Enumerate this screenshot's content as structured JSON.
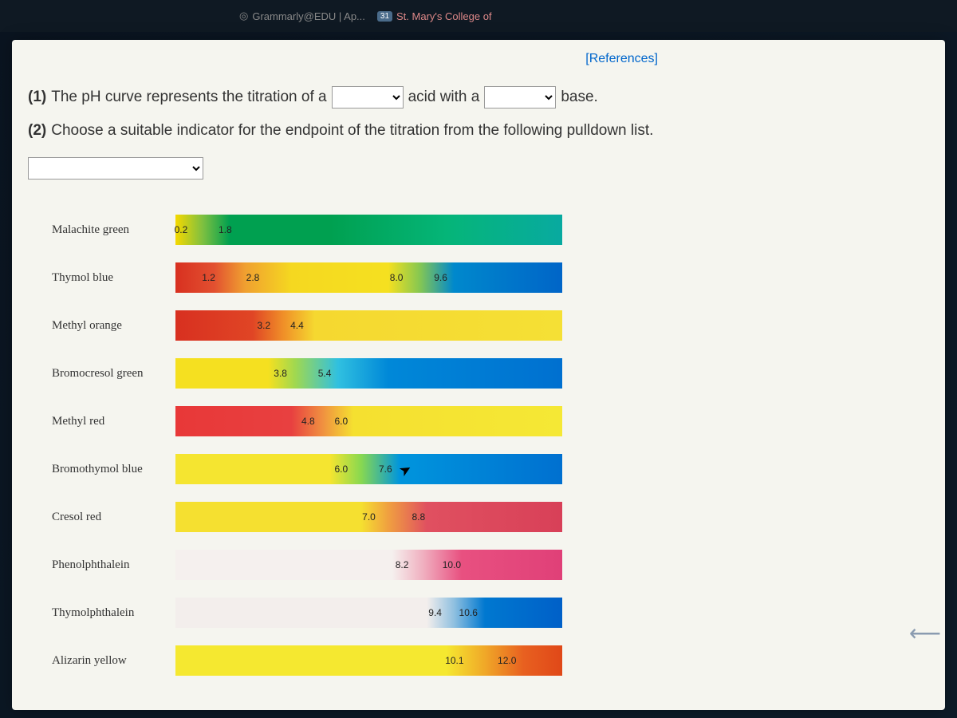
{
  "browser_tabs": {
    "grammarly": "Grammarly@EDU | Ap...",
    "badge": "31",
    "stmarys": "St. Mary's College of "
  },
  "references": "[References]",
  "question1": {
    "num": "(1)",
    "part_a": "The pH curve represents the titration of a",
    "part_b": "acid with a",
    "part_c": "base."
  },
  "question2": {
    "num": "(2)",
    "text": "Choose a suitable indicator for the endpoint of the titration from the following pulldown list."
  },
  "ph_range": {
    "min": 0,
    "max": 14
  },
  "indicators": [
    {
      "name": "Malachite green",
      "low": "0.2",
      "high": "1.8",
      "stops": [
        {
          "c": "#f5d800",
          "p": 0
        },
        {
          "c": "#7fc040",
          "p": 7
        },
        {
          "c": "#00a050",
          "p": 14
        },
        {
          "c": "#00a050",
          "p": 40
        },
        {
          "c": "#05b578",
          "p": 70
        },
        {
          "c": "#08aaa0",
          "p": 100
        }
      ]
    },
    {
      "name": "Thymol blue",
      "low": "1.2",
      "high": "2.8",
      "low2": "8.0",
      "high2": "9.6",
      "stops": [
        {
          "c": "#d83020",
          "p": 0
        },
        {
          "c": "#e25030",
          "p": 10
        },
        {
          "c": "#f0a030",
          "p": 18
        },
        {
          "c": "#f5d820",
          "p": 30
        },
        {
          "c": "#f5e020",
          "p": 55
        },
        {
          "c": "#88c850",
          "p": 63
        },
        {
          "c": "#0088cc",
          "p": 72
        },
        {
          "c": "#0065c8",
          "p": 100
        }
      ]
    },
    {
      "name": "Methyl orange",
      "low": "3.2",
      "high": "4.4",
      "stops": [
        {
          "c": "#d83020",
          "p": 0
        },
        {
          "c": "#e04525",
          "p": 20
        },
        {
          "c": "#f09028",
          "p": 28
        },
        {
          "c": "#f5d830",
          "p": 36
        },
        {
          "c": "#f5e035",
          "p": 100
        }
      ]
    },
    {
      "name": "Bromocresol green",
      "low": "3.8",
      "high": "5.4",
      "stops": [
        {
          "c": "#f5e020",
          "p": 0
        },
        {
          "c": "#f5e020",
          "p": 24
        },
        {
          "c": "#a0d850",
          "p": 31
        },
        {
          "c": "#30c0e0",
          "p": 42
        },
        {
          "c": "#0088d8",
          "p": 55
        },
        {
          "c": "#0070d0",
          "p": 100
        }
      ]
    },
    {
      "name": "Methyl red",
      "low": "4.8",
      "high": "6.0",
      "stops": [
        {
          "c": "#e83838",
          "p": 0
        },
        {
          "c": "#e84040",
          "p": 30
        },
        {
          "c": "#f09040",
          "p": 38
        },
        {
          "c": "#f5e030",
          "p": 46
        },
        {
          "c": "#f5e835",
          "p": 100
        }
      ]
    },
    {
      "name": "Bromothymol blue",
      "low": "6.0",
      "high": "7.6",
      "stops": [
        {
          "c": "#f5e530",
          "p": 0
        },
        {
          "c": "#f5e530",
          "p": 40
        },
        {
          "c": "#88d850",
          "p": 48
        },
        {
          "c": "#0095dd",
          "p": 58
        },
        {
          "c": "#0070d0",
          "p": 100
        }
      ]
    },
    {
      "name": "Cresol red",
      "low": "7.0",
      "high": "8.8",
      "stops": [
        {
          "c": "#f5e030",
          "p": 0
        },
        {
          "c": "#f5e030",
          "p": 48
        },
        {
          "c": "#f0a040",
          "p": 55
        },
        {
          "c": "#e05060",
          "p": 65
        },
        {
          "c": "#d84058",
          "p": 100
        }
      ]
    },
    {
      "name": "Phenolphthalein",
      "low": "8.2",
      "high": "10.0",
      "stops": [
        {
          "c": "#f5f0ee",
          "p": 0
        },
        {
          "c": "#f5f0ee",
          "p": 56
        },
        {
          "c": "#f0b0c0",
          "p": 64
        },
        {
          "c": "#e85080",
          "p": 74
        },
        {
          "c": "#e04078",
          "p": 100
        }
      ]
    },
    {
      "name": "Thymolphthalein",
      "low": "9.4",
      "high": "10.6",
      "stops": [
        {
          "c": "#f3eeec",
          "p": 0
        },
        {
          "c": "#f3eeec",
          "p": 65
        },
        {
          "c": "#90c0e0",
          "p": 72
        },
        {
          "c": "#0078d0",
          "p": 80
        },
        {
          "c": "#0060c8",
          "p": 100
        }
      ]
    },
    {
      "name": "Alizarin yellow",
      "low": "10.1",
      "high": "12.0",
      "stops": [
        {
          "c": "#f5e830",
          "p": 0
        },
        {
          "c": "#f5e830",
          "p": 70
        },
        {
          "c": "#f0a828",
          "p": 80
        },
        {
          "c": "#e86020",
          "p": 90
        },
        {
          "c": "#e04818",
          "p": 100
        }
      ]
    }
  ]
}
